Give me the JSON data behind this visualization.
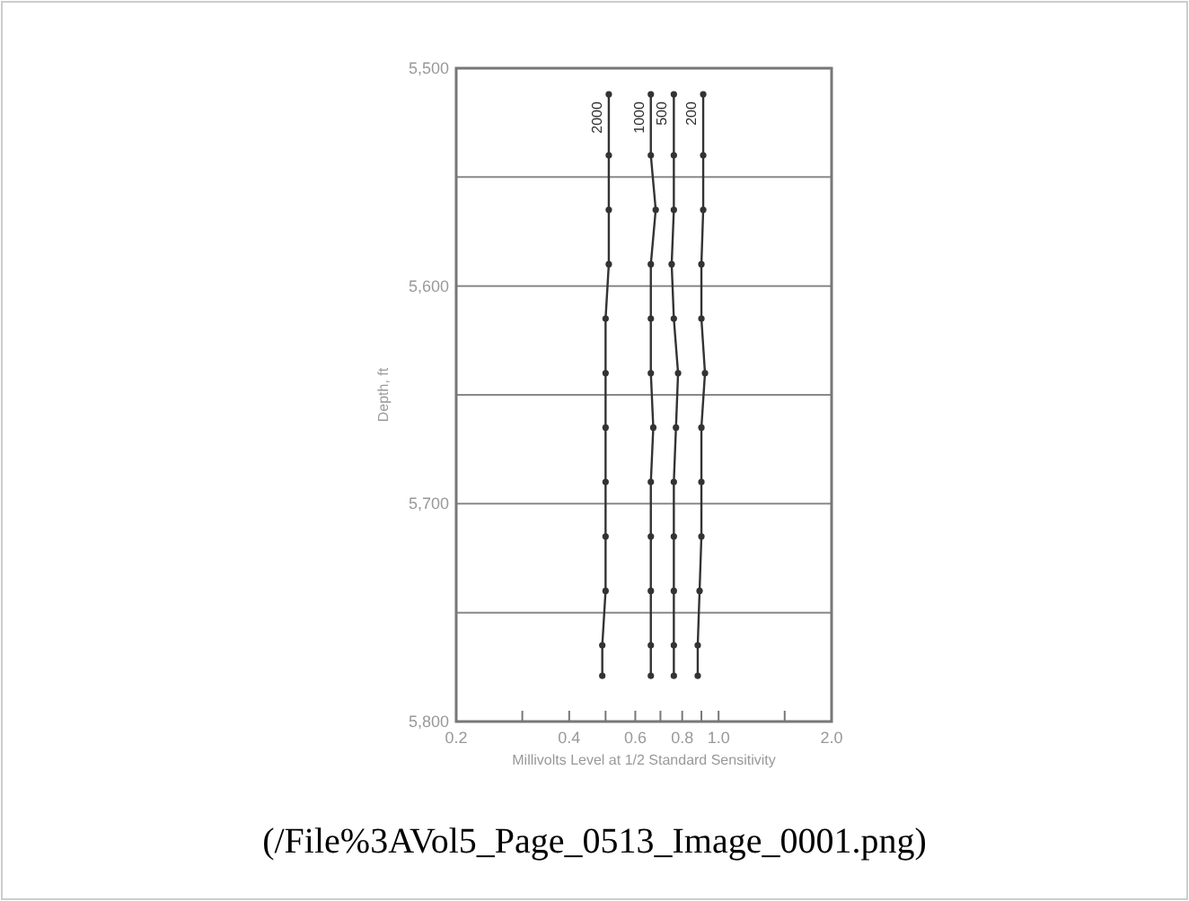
{
  "chart_data": {
    "type": "line",
    "xlabel": "Millivolts Level at 1/2 Standard Sensitivity",
    "ylabel": "Depth, ft",
    "log": "x",
    "xlim": [
      0.2,
      2.0
    ],
    "xticks": [
      {
        "value": 0.2,
        "label": "0.2"
      },
      {
        "value": 0.3,
        "label": null
      },
      {
        "value": 0.4,
        "label": "0.4"
      },
      {
        "value": 0.5,
        "label": null
      },
      {
        "value": 0.6,
        "label": "0.6"
      },
      {
        "value": 0.7,
        "label": null
      },
      {
        "value": 0.8,
        "label": "0.8"
      },
      {
        "value": 0.9,
        "label": null
      },
      {
        "value": 1.0,
        "label": "1.0"
      },
      {
        "value": 1.5,
        "label": null
      },
      {
        "value": 2.0,
        "label": "2.0"
      }
    ],
    "ylim": [
      5800,
      5500
    ],
    "yticks": [
      {
        "value": 5500,
        "label": "5,500"
      },
      {
        "value": 5550,
        "label": null
      },
      {
        "value": 5600,
        "label": "5,600"
      },
      {
        "value": 5650,
        "label": null
      },
      {
        "value": 5700,
        "label": "5,700"
      },
      {
        "value": 5750,
        "label": null
      },
      {
        "value": 5800,
        "label": "5,800"
      }
    ],
    "grid": "y",
    "marker": "circle",
    "line_style": "solid",
    "series": [
      {
        "name": "2000",
        "color": "#333333",
        "x": [
          0.51,
          0.51,
          0.51,
          0.51,
          0.5,
          0.5,
          0.5,
          0.5,
          0.5,
          0.5,
          0.49,
          0.49
        ],
        "values": [
          5512,
          5540,
          5565,
          5590,
          5615,
          5640,
          5665,
          5690,
          5715,
          5740,
          5765,
          5779
        ]
      },
      {
        "name": "1000",
        "color": "#333333",
        "x": [
          0.66,
          0.66,
          0.68,
          0.66,
          0.66,
          0.66,
          0.67,
          0.66,
          0.66,
          0.66,
          0.66,
          0.66
        ],
        "values": [
          5512,
          5540,
          5565,
          5590,
          5615,
          5640,
          5665,
          5690,
          5715,
          5740,
          5765,
          5779
        ]
      },
      {
        "name": "500",
        "color": "#333333",
        "x": [
          0.76,
          0.76,
          0.76,
          0.75,
          0.76,
          0.78,
          0.77,
          0.76,
          0.76,
          0.76,
          0.76,
          0.76
        ],
        "values": [
          5512,
          5540,
          5565,
          5590,
          5615,
          5640,
          5665,
          5690,
          5715,
          5740,
          5765,
          5779
        ]
      },
      {
        "name": "200",
        "color": "#333333",
        "x": [
          0.91,
          0.91,
          0.91,
          0.9,
          0.9,
          0.92,
          0.9,
          0.9,
          0.9,
          0.89,
          0.88,
          0.88
        ],
        "values": [
          5512,
          5540,
          5565,
          5590,
          5615,
          5640,
          5665,
          5690,
          5715,
          5740,
          5765,
          5779
        ]
      }
    ],
    "annotations": [
      "(/File%3AVol5_Page_0513_Image_0001.png)"
    ]
  }
}
